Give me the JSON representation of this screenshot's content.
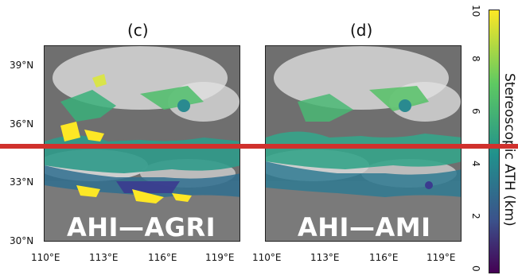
{
  "panels": [
    {
      "title": "(c)",
      "overlay_label": "AHI—AGRI"
    },
    {
      "title": "(d)",
      "overlay_label": "AHI—AMI"
    }
  ],
  "axes": {
    "lat_ticks": [
      "39°N",
      "36°N",
      "33°N",
      "30°N"
    ],
    "lon_ticks": [
      "110°E",
      "113°E",
      "116°E",
      "119°E"
    ]
  },
  "colorbar": {
    "label": "Stereoscopic ATH  (km)",
    "ticks": [
      "0",
      "2",
      "4",
      "6",
      "8",
      "10"
    ],
    "colormap": [
      "#440154",
      "#3b528b",
      "#21918c",
      "#5ec962",
      "#fde725"
    ]
  },
  "colors": {
    "separator_line": "#d0312d"
  }
}
